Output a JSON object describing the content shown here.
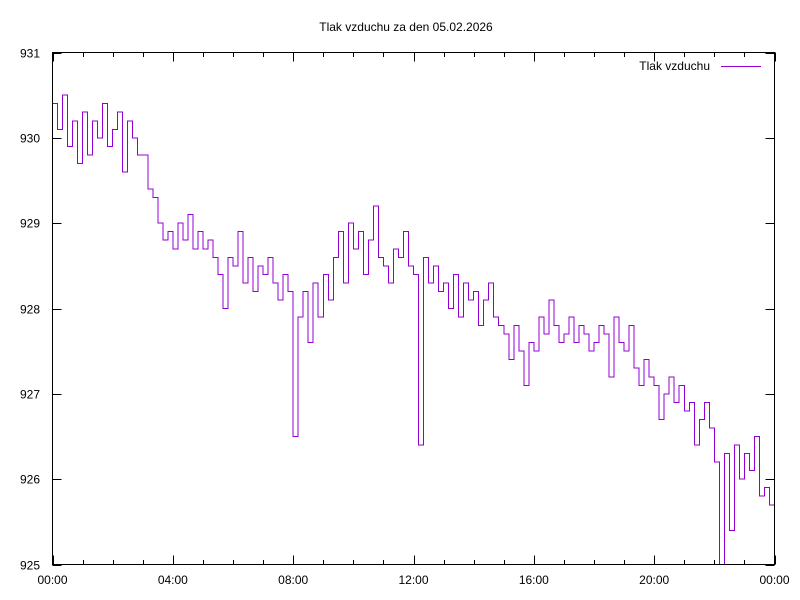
{
  "chart_data": {
    "type": "line",
    "style": "steps",
    "title": "Tlak vzduchu za den 05.02.2026",
    "xlabel": "",
    "ylabel": "",
    "ylim": [
      925,
      931
    ],
    "xlim": [
      "00:00",
      "00:00"
    ],
    "yticks": [
      "925",
      "926",
      "927",
      "928",
      "929",
      "930",
      "931"
    ],
    "xticks": [
      "00:00",
      "04:00",
      "08:00",
      "12:00",
      "16:00",
      "20:00",
      "00:00"
    ],
    "grid": false,
    "legend_position": "top-right",
    "series": [
      {
        "name": "Tlak vzduchu",
        "color": "#9400d3",
        "x": [
          "00:00",
          "00:10",
          "00:20",
          "00:30",
          "00:40",
          "00:50",
          "01:00",
          "01:10",
          "01:20",
          "01:30",
          "01:40",
          "01:50",
          "02:00",
          "02:10",
          "02:20",
          "02:30",
          "02:40",
          "02:50",
          "03:00",
          "03:10",
          "03:20",
          "03:30",
          "03:40",
          "03:50",
          "04:00",
          "04:10",
          "04:20",
          "04:30",
          "04:40",
          "04:50",
          "05:00",
          "05:10",
          "05:20",
          "05:30",
          "05:40",
          "05:50",
          "06:00",
          "06:10",
          "06:20",
          "06:30",
          "06:40",
          "06:50",
          "07:00",
          "07:10",
          "07:20",
          "07:30",
          "07:40",
          "07:50",
          "08:00",
          "08:10",
          "08:20",
          "08:30",
          "08:40",
          "08:50",
          "09:00",
          "09:10",
          "09:20",
          "09:30",
          "09:40",
          "09:50",
          "10:00",
          "10:10",
          "10:20",
          "10:30",
          "10:40",
          "10:50",
          "11:00",
          "11:10",
          "11:20",
          "11:30",
          "11:40",
          "11:50",
          "12:00",
          "12:10",
          "12:20",
          "12:30",
          "12:40",
          "12:50",
          "13:00",
          "13:10",
          "13:20",
          "13:30",
          "13:40",
          "13:50",
          "14:00",
          "14:10",
          "14:20",
          "14:30",
          "14:40",
          "14:50",
          "15:00",
          "15:10",
          "15:20",
          "15:30",
          "15:40",
          "15:50",
          "16:00",
          "16:10",
          "16:20",
          "16:30",
          "16:40",
          "16:50",
          "17:00",
          "17:10",
          "17:20",
          "17:30",
          "17:40",
          "17:50",
          "18:00",
          "18:10",
          "18:20",
          "18:30",
          "18:40",
          "18:50",
          "19:00",
          "19:10",
          "19:20",
          "19:30",
          "19:40",
          "19:50",
          "20:00",
          "20:10",
          "20:20",
          "20:30",
          "20:40",
          "20:50",
          "21:00",
          "21:10",
          "21:20",
          "21:30",
          "21:40",
          "21:50",
          "22:00",
          "22:10",
          "22:20",
          "22:30",
          "22:40",
          "22:50",
          "23:00",
          "23:10",
          "23:20",
          "23:30",
          "23:40",
          "23:50",
          "24:00"
        ],
        "values": [
          930.4,
          930.1,
          930.5,
          929.9,
          930.2,
          929.7,
          930.3,
          929.8,
          930.2,
          930.0,
          930.4,
          929.9,
          930.1,
          930.3,
          929.6,
          930.2,
          930.0,
          929.8,
          929.8,
          929.4,
          929.3,
          929.0,
          928.8,
          928.9,
          928.7,
          929.0,
          928.8,
          929.1,
          928.7,
          928.9,
          928.7,
          928.8,
          928.6,
          928.4,
          928.0,
          928.6,
          928.5,
          928.9,
          928.3,
          928.6,
          928.2,
          928.5,
          928.4,
          928.6,
          928.3,
          928.1,
          928.4,
          928.2,
          926.5,
          927.9,
          928.2,
          927.6,
          928.3,
          927.9,
          928.4,
          928.1,
          928.6,
          928.9,
          928.3,
          929.0,
          928.7,
          928.9,
          928.4,
          928.8,
          929.2,
          928.6,
          928.5,
          928.3,
          928.7,
          928.6,
          928.9,
          928.5,
          928.4,
          926.4,
          928.6,
          928.3,
          928.5,
          928.2,
          928.3,
          928.0,
          928.4,
          927.9,
          928.3,
          928.1,
          928.2,
          927.8,
          928.1,
          928.3,
          927.9,
          927.8,
          927.7,
          927.4,
          927.8,
          927.5,
          927.1,
          927.6,
          927.5,
          927.9,
          927.7,
          928.1,
          927.8,
          927.6,
          927.7,
          927.9,
          927.6,
          927.8,
          927.7,
          927.5,
          927.6,
          927.8,
          927.7,
          927.2,
          927.9,
          927.6,
          927.5,
          927.8,
          927.3,
          927.1,
          927.4,
          927.2,
          927.1,
          926.7,
          927.0,
          927.2,
          926.9,
          927.1,
          926.8,
          926.9,
          926.4,
          926.7,
          926.9,
          926.6,
          926.2,
          925.0,
          926.3,
          925.4,
          926.4,
          926.0,
          926.3,
          926.1,
          926.5,
          925.8,
          925.9,
          925.7,
          925.8
        ]
      }
    ]
  }
}
